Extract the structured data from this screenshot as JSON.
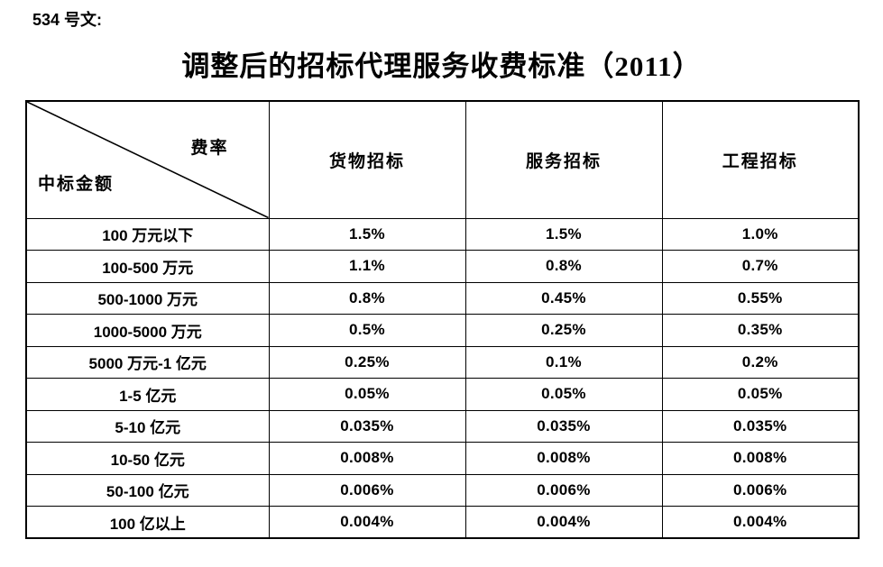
{
  "doc": {
    "label": "534 号文:",
    "title": "调整后的招标代理服务收费标准（2011）"
  },
  "table": {
    "corner": {
      "top_right": "费率",
      "bottom_left": "中标金额"
    },
    "columns": [
      "货物招标",
      "服务招标",
      "工程招标"
    ],
    "rows": [
      {
        "label": "100 万元以下",
        "values": [
          "1.5%",
          "1.5%",
          "1.0%"
        ]
      },
      {
        "label": "100-500 万元",
        "values": [
          "1.1%",
          "0.8%",
          "0.7%"
        ]
      },
      {
        "label": "500-1000 万元",
        "values": [
          "0.8%",
          "0.45%",
          "0.55%"
        ]
      },
      {
        "label": "1000-5000 万元",
        "values": [
          "0.5%",
          "0.25%",
          "0.35%"
        ]
      },
      {
        "label": "5000 万元-1 亿元",
        "values": [
          "0.25%",
          "0.1%",
          "0.2%"
        ]
      },
      {
        "label": "1-5 亿元",
        "values": [
          "0.05%",
          "0.05%",
          "0.05%"
        ]
      },
      {
        "label": "5-10 亿元",
        "values": [
          "0.035%",
          "0.035%",
          "0.035%"
        ]
      },
      {
        "label": "10-50 亿元",
        "values": [
          "0.008%",
          "0.008%",
          "0.008%"
        ]
      },
      {
        "label": "50-100 亿元",
        "values": [
          "0.006%",
          "0.006%",
          "0.006%"
        ]
      },
      {
        "label": "100 亿以上",
        "values": [
          "0.004%",
          "0.004%",
          "0.004%"
        ]
      }
    ],
    "colors": {
      "border": "#000000",
      "text": "#000000",
      "background": "#ffffff"
    }
  }
}
